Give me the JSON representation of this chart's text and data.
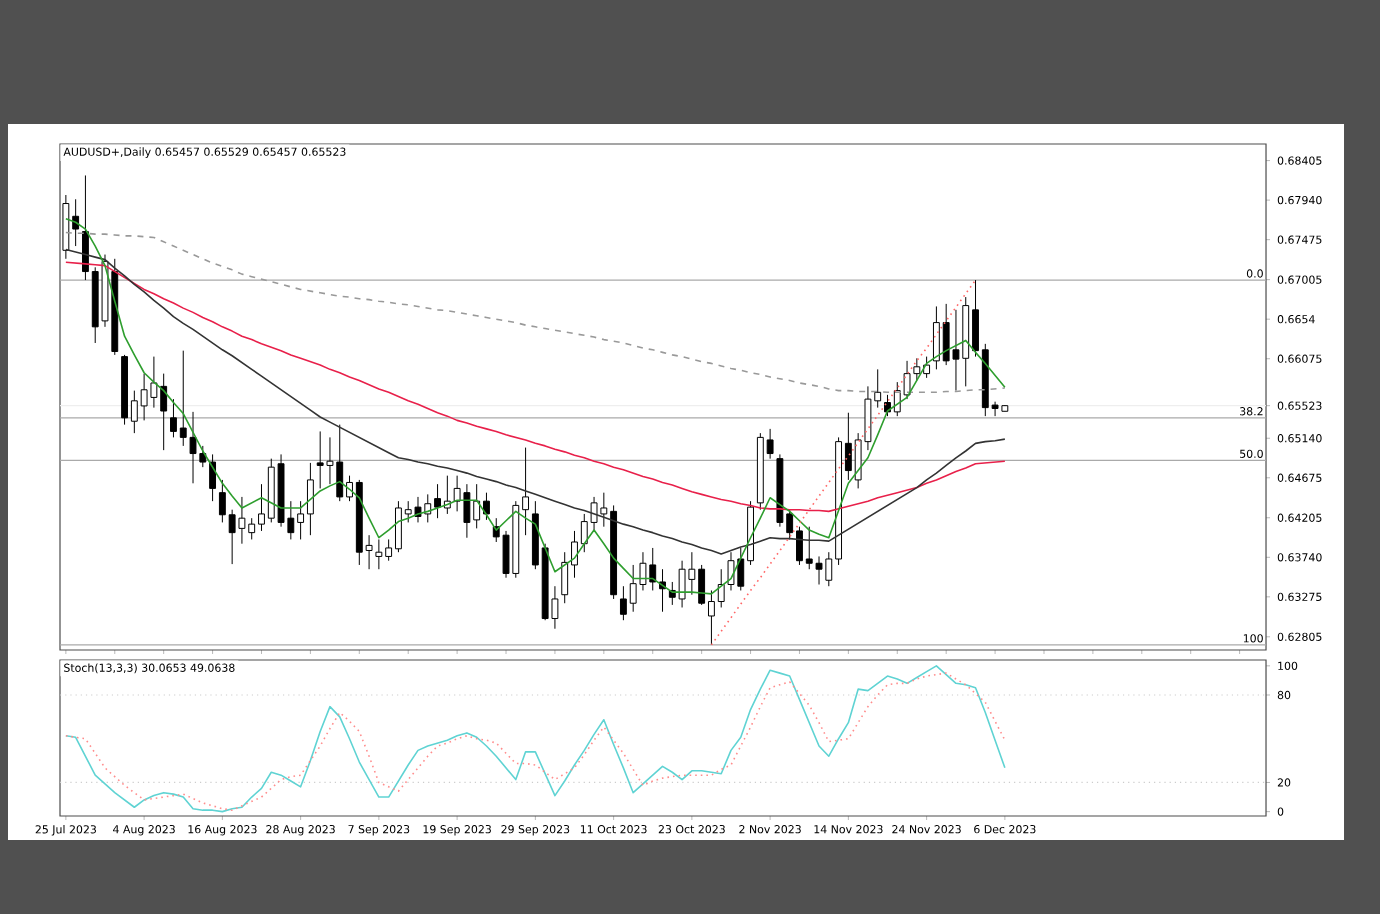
{
  "chart_data": [
    {
      "type": "candlestick",
      "title": "AUDUSD+,Daily 0.65457 0.65529 0.65457 0.65523",
      "tick_labels": "y",
      "categories": [
        null,
        null,
        null,
        null,
        null,
        null,
        null,
        null,
        null,
        null,
        null,
        null,
        null,
        null,
        null,
        null,
        null,
        null,
        null,
        null,
        null,
        null,
        null,
        null,
        null,
        null,
        null,
        null,
        null,
        null,
        null,
        null,
        null,
        null,
        null,
        null,
        null,
        null,
        null,
        null,
        null,
        null,
        null,
        null,
        null,
        null,
        null,
        null,
        null,
        null,
        null,
        null,
        null,
        null,
        null,
        null,
        null,
        null,
        null,
        null,
        null,
        null,
        null,
        null,
        null,
        null,
        null,
        null,
        null,
        null,
        null,
        null,
        null,
        null,
        null,
        null,
        null,
        null,
        null,
        null,
        null,
        null,
        null,
        null,
        null,
        null,
        null,
        null,
        null,
        null,
        null,
        null,
        null,
        null,
        null,
        null,
        null
      ],
      "ylim": [
        0.6265,
        0.686
      ],
      "yticks": [
        0.62805,
        0.63275,
        {
          "value": 0.6374,
          "label": "0.63740"
        },
        0.64205,
        0.64675,
        {
          "value": 0.6514,
          "label": "0.65140"
        },
        {
          "value": 0.65523,
          "label": "0.65523"
        },
        0.66075,
        0.6654,
        0.67005,
        0.67475,
        {
          "value": 0.6794,
          "label": "0.67940"
        },
        0.68405
      ],
      "ohlc": [
        [
          0.6735,
          0.68,
          0.6725,
          0.679
        ],
        [
          0.6775,
          0.6795,
          0.674,
          0.676
        ],
        [
          0.6757,
          0.6823,
          0.67,
          0.671
        ],
        [
          0.671,
          0.6715,
          0.6626,
          0.6645
        ],
        [
          0.6652,
          0.673,
          0.6645,
          0.6722
        ],
        [
          0.671,
          0.6725,
          0.6612,
          0.6616
        ],
        [
          0.661,
          0.6612,
          0.653,
          0.6538
        ],
        [
          0.6534,
          0.657,
          0.652,
          0.6558
        ],
        [
          0.6552,
          0.659,
          0.6535,
          0.6571
        ],
        [
          0.6562,
          0.661,
          0.655,
          0.6579
        ],
        [
          0.6575,
          0.659,
          0.65,
          0.6546
        ],
        [
          0.6538,
          0.656,
          0.6515,
          0.6522
        ],
        [
          0.6526,
          0.6617,
          0.6505,
          0.6515
        ],
        [
          0.6515,
          0.6545,
          0.6461,
          0.6496
        ],
        [
          0.6496,
          0.6505,
          0.648,
          0.6486
        ],
        [
          0.6486,
          0.6495,
          0.644,
          0.6455
        ],
        [
          0.645,
          0.6465,
          0.6415,
          0.6424
        ],
        [
          0.6424,
          0.643,
          0.6366,
          0.6403
        ],
        [
          0.6408,
          0.6445,
          0.639,
          0.642
        ],
        [
          0.6403,
          0.642,
          0.6395,
          0.6413
        ],
        [
          0.6413,
          0.646,
          0.6405,
          0.6425
        ],
        [
          0.642,
          0.649,
          0.6415,
          0.648
        ],
        [
          0.6484,
          0.6495,
          0.641,
          0.6415
        ],
        [
          0.642,
          0.644,
          0.6395,
          0.6403
        ],
        [
          0.6415,
          0.644,
          0.6395,
          0.6425
        ],
        [
          0.6425,
          0.6485,
          0.64,
          0.6465
        ],
        [
          0.6485,
          0.6522,
          0.6455,
          0.6482
        ],
        [
          0.6482,
          0.6515,
          0.646,
          0.6487
        ],
        [
          0.6486,
          0.653,
          0.644,
          0.6445
        ],
        [
          0.6445,
          0.647,
          0.644,
          0.6462
        ],
        [
          0.6462,
          0.6465,
          0.6365,
          0.638
        ],
        [
          0.6382,
          0.64,
          0.636,
          0.6388
        ],
        [
          0.6375,
          0.6395,
          0.636,
          0.638
        ],
        [
          0.6375,
          0.6395,
          0.637,
          0.6385
        ],
        [
          0.6384,
          0.644,
          0.638,
          0.6432
        ],
        [
          0.6425,
          0.644,
          0.6415,
          0.643
        ],
        [
          0.6433,
          0.6445,
          0.6415,
          0.6422
        ],
        [
          0.6425,
          0.6448,
          0.6415,
          0.6437
        ],
        [
          0.6443,
          0.646,
          0.642,
          0.6433
        ],
        [
          0.6432,
          0.647,
          0.6425,
          0.644
        ],
        [
          0.644,
          0.647,
          0.6428,
          0.6455
        ],
        [
          0.645,
          0.646,
          0.6397,
          0.6415
        ],
        [
          0.6418,
          0.646,
          0.6408,
          0.644
        ],
        [
          0.644,
          0.645,
          0.6418,
          0.6425
        ],
        [
          0.641,
          0.642,
          0.6392,
          0.6398
        ],
        [
          0.64,
          0.6405,
          0.635,
          0.6355
        ],
        [
          0.6355,
          0.644,
          0.635,
          0.6435
        ],
        [
          0.643,
          0.6503,
          0.64,
          0.6445
        ],
        [
          0.6425,
          0.644,
          0.636,
          0.6365
        ],
        [
          0.6385,
          0.639,
          0.63,
          0.6302
        ],
        [
          0.6302,
          0.634,
          0.629,
          0.6325
        ],
        [
          0.633,
          0.638,
          0.632,
          0.6368
        ],
        [
          0.6365,
          0.6405,
          0.635,
          0.6392
        ],
        [
          0.639,
          0.6425,
          0.638,
          0.6416
        ],
        [
          0.6415,
          0.6445,
          0.6405,
          0.6438
        ],
        [
          0.6425,
          0.645,
          0.641,
          0.6432
        ],
        [
          0.6428,
          0.6435,
          0.6325,
          0.633
        ],
        [
          0.6325,
          0.634,
          0.63,
          0.6307
        ],
        [
          0.632,
          0.6365,
          0.631,
          0.6343
        ],
        [
          0.6342,
          0.638,
          0.6335,
          0.6367
        ],
        [
          0.6365,
          0.6385,
          0.6335,
          0.6345
        ],
        [
          0.6345,
          0.636,
          0.631,
          0.6337
        ],
        [
          0.6335,
          0.6345,
          0.6318,
          0.6327
        ],
        [
          0.6325,
          0.637,
          0.6315,
          0.636
        ],
        [
          0.6348,
          0.638,
          0.633,
          0.636
        ],
        [
          0.636,
          0.6365,
          0.6318,
          0.632
        ],
        [
          0.6305,
          0.6335,
          0.6271,
          0.6322
        ],
        [
          0.6322,
          0.636,
          0.6315,
          0.6342
        ],
        [
          0.6342,
          0.638,
          0.6335,
          0.637
        ],
        [
          0.6372,
          0.6385,
          0.6335,
          0.634
        ],
        [
          0.637,
          0.644,
          0.6365,
          0.6433
        ],
        [
          0.6438,
          0.652,
          0.643,
          0.6515
        ],
        [
          0.6512,
          0.6525,
          0.649,
          0.6496
        ],
        [
          0.649,
          0.6495,
          0.641,
          0.6415
        ],
        [
          0.6425,
          0.643,
          0.6395,
          0.6403
        ],
        [
          0.6405,
          0.641,
          0.6365,
          0.637
        ],
        [
          0.6372,
          0.641,
          0.636,
          0.6367
        ],
        [
          0.6367,
          0.6375,
          0.6342,
          0.636
        ],
        [
          0.6347,
          0.638,
          0.634,
          0.6372
        ],
        [
          0.6372,
          0.6515,
          0.6365,
          0.651
        ],
        [
          0.6508,
          0.6544,
          0.6465,
          0.6476
        ],
        [
          0.6465,
          0.652,
          0.6455,
          0.6512
        ],
        [
          0.651,
          0.6575,
          0.65,
          0.656
        ],
        [
          0.6558,
          0.6595,
          0.655,
          0.6568
        ],
        [
          0.6556,
          0.6565,
          0.654,
          0.6545
        ],
        [
          0.6545,
          0.658,
          0.654,
          0.657
        ],
        [
          0.6565,
          0.6605,
          0.656,
          0.659
        ],
        [
          0.659,
          0.6608,
          0.6582,
          0.6598
        ],
        [
          0.659,
          0.661,
          0.6585,
          0.66
        ],
        [
          0.6605,
          0.6669,
          0.6595,
          0.665
        ],
        [
          0.665,
          0.6672,
          0.66,
          0.6605
        ],
        [
          0.6618,
          0.6665,
          0.657,
          0.6607
        ],
        [
          0.6608,
          0.668,
          0.6575,
          0.667
        ],
        [
          0.6665,
          0.67,
          0.661,
          0.6617
        ],
        [
          0.6618,
          0.6625,
          0.654,
          0.655
        ],
        [
          0.6553,
          0.6557,
          0.654,
          0.6549
        ],
        [
          0.65457,
          0.65529,
          0.65457,
          0.65523
        ]
      ],
      "series": [
        {
          "type": "line",
          "color": "#999999",
          "line_style": "dashed",
          "values": [
            0.6756,
            0.6755,
            0.6755,
            0.6754,
            0.6754,
            0.6753,
            0.6752,
            0.6752,
            0.6751,
            0.675,
            0.6745,
            0.674,
            0.6735,
            0.673,
            0.6725,
            0.672,
            0.6716,
            0.6712,
            0.6707,
            0.6704,
            0.6701,
            0.6698,
            0.6695,
            0.6692,
            0.6689,
            0.6687,
            0.6685,
            0.6683,
            0.6681,
            0.668,
            0.6678,
            0.6677,
            0.6675,
            0.6674,
            0.6672,
            0.6671,
            0.6669,
            0.6667,
            0.6665,
            0.6664,
            0.6662,
            0.666,
            0.6658,
            0.6656,
            0.6654,
            0.6652,
            0.665,
            0.6647,
            0.6645,
            0.6643,
            0.6641,
            0.6639,
            0.6637,
            0.6635,
            0.6633,
            0.663,
            0.6628,
            0.6626,
            0.6623,
            0.662,
            0.6618,
            0.6615,
            0.6612,
            0.661,
            0.6607,
            0.6604,
            0.6602,
            0.6599,
            0.6596,
            0.6594,
            0.6591,
            0.6589,
            0.6586,
            0.6584,
            0.6582,
            0.6579,
            0.6577,
            0.6575,
            0.6572,
            0.657,
            0.657,
            0.6569,
            0.6569,
            0.6569,
            0.6568,
            0.6568,
            0.6568,
            0.6568,
            0.6568,
            0.6568,
            0.6569,
            0.6569,
            0.657,
            0.6571,
            0.6571,
            0.6572,
            0.6573
          ]
        },
        {
          "type": "line",
          "color": "#e8204a",
          "line_style": "solid",
          "values": [
            0.6721,
            0.672,
            0.6719,
            0.6718,
            0.6717,
            0.671,
            0.6703,
            0.6696,
            0.6689,
            0.6684,
            0.6678,
            0.6673,
            0.6667,
            0.6662,
            0.6656,
            0.6651,
            0.6645,
            0.664,
            0.6634,
            0.663,
            0.6625,
            0.6621,
            0.6617,
            0.6612,
            0.6608,
            0.6604,
            0.66,
            0.6595,
            0.6591,
            0.6586,
            0.6582,
            0.6577,
            0.6572,
            0.6568,
            0.6563,
            0.6558,
            0.6554,
            0.6549,
            0.6544,
            0.654,
            0.6535,
            0.6532,
            0.6528,
            0.6525,
            0.6522,
            0.6518,
            0.6515,
            0.6512,
            0.6508,
            0.6505,
            0.6501,
            0.6498,
            0.6494,
            0.6491,
            0.6487,
            0.6484,
            0.648,
            0.6477,
            0.6473,
            0.6469,
            0.6466,
            0.6462,
            0.6459,
            0.6455,
            0.6451,
            0.6448,
            0.6445,
            0.6442,
            0.644,
            0.6437,
            0.6435,
            0.6432,
            0.6431,
            0.6431,
            0.643,
            0.643,
            0.6429,
            0.6429,
            0.6428,
            0.6431,
            0.6434,
            0.6437,
            0.644,
            0.6444,
            0.6447,
            0.645,
            0.6453,
            0.6456,
            0.6461,
            0.6465,
            0.647,
            0.6475,
            0.6479,
            0.6484,
            0.6485,
            0.6486,
            0.6487
          ]
        },
        {
          "type": "line",
          "color": "#333333",
          "line_style": "solid",
          "values": [
            0.6736,
            0.6733,
            0.673,
            0.6727,
            0.6724,
            0.6714,
            0.6705,
            0.6695,
            0.6686,
            0.6676,
            0.6667,
            0.6657,
            0.6649,
            0.6642,
            0.6634,
            0.6626,
            0.6618,
            0.6611,
            0.6603,
            0.6595,
            0.6587,
            0.6579,
            0.6571,
            0.6563,
            0.6555,
            0.6547,
            0.6539,
            0.6533,
            0.6527,
            0.6521,
            0.6515,
            0.6509,
            0.6503,
            0.6497,
            0.6491,
            0.6489,
            0.6486,
            0.6484,
            0.6481,
            0.6479,
            0.6476,
            0.6473,
            0.6469,
            0.6466,
            0.6463,
            0.6459,
            0.6456,
            0.6452,
            0.6448,
            0.6444,
            0.644,
            0.6436,
            0.6432,
            0.6429,
            0.6425,
            0.6421,
            0.6417,
            0.6413,
            0.641,
            0.6406,
            0.6403,
            0.6399,
            0.6396,
            0.6392,
            0.6389,
            0.6385,
            0.6382,
            0.6378,
            0.6382,
            0.6386,
            0.6389,
            0.6393,
            0.6397,
            0.6396,
            0.6396,
            0.6395,
            0.6394,
            0.6394,
            0.6393,
            0.64,
            0.6407,
            0.6414,
            0.6421,
            0.6428,
            0.6435,
            0.6442,
            0.6449,
            0.6456,
            0.6465,
            0.6473,
            0.6482,
            0.6491,
            0.6499,
            0.6508,
            0.651,
            0.6511,
            0.6513
          ]
        },
        {
          "type": "line",
          "color": "#2e9e2e",
          "line_style": "solid",
          "values": [
            0.6772,
            0.6768,
            0.676,
            0.674,
            0.6717,
            0.6675,
            0.6634,
            0.6612,
            0.6591,
            0.658,
            0.657,
            0.6556,
            0.6543,
            0.6521,
            0.6499,
            0.648,
            0.6461,
            0.6446,
            0.6432,
            0.6438,
            0.6444,
            0.6438,
            0.6432,
            0.6432,
            0.6432,
            0.6442,
            0.6452,
            0.6458,
            0.6463,
            0.6454,
            0.6444,
            0.642,
            0.6397,
            0.6406,
            0.6416,
            0.642,
            0.6425,
            0.6428,
            0.6432,
            0.6436,
            0.6441,
            0.6441,
            0.6441,
            0.6424,
            0.6406,
            0.6417,
            0.6428,
            0.642,
            0.6413,
            0.6385,
            0.6357,
            0.6365,
            0.6373,
            0.639,
            0.6406,
            0.639,
            0.6373,
            0.6361,
            0.6349,
            0.6349,
            0.6349,
            0.6341,
            0.6333,
            0.6333,
            0.6333,
            0.6332,
            0.6331,
            0.634,
            0.6349,
            0.6373,
            0.6397,
            0.642,
            0.6444,
            0.6436,
            0.6428,
            0.6417,
            0.6406,
            0.6401,
            0.6397,
            0.6429,
            0.6461,
            0.6476,
            0.6491,
            0.6518,
            0.6546,
            0.6554,
            0.6562,
            0.6582,
            0.6602,
            0.661,
            0.6617,
            0.6623,
            0.6629,
            0.6615,
            0.6602,
            0.6588,
            0.6574
          ]
        },
        {
          "type": "line",
          "color": "#ff6666",
          "line_style": "dotted",
          "values": [
            null,
            null,
            null,
            null,
            null,
            null,
            null,
            null,
            null,
            null,
            null,
            null,
            null,
            null,
            null,
            null,
            null,
            null,
            null,
            null,
            null,
            null,
            null,
            null,
            null,
            null,
            null,
            null,
            null,
            null,
            null,
            null,
            null,
            null,
            null,
            null,
            null,
            null,
            null,
            null,
            null,
            null,
            null,
            null,
            null,
            null,
            null,
            null,
            null,
            null,
            null,
            null,
            null,
            null,
            null,
            null,
            null,
            null,
            null,
            null,
            null,
            null,
            null,
            null,
            null,
            null,
            0.6271,
            0.6287,
            0.6303,
            0.6319,
            0.6335,
            0.635,
            0.6366,
            0.6382,
            0.6398,
            0.6414,
            0.643,
            0.6446,
            0.6462,
            0.6478,
            0.6493,
            0.6509,
            0.6525,
            0.6541,
            0.6557,
            0.6573,
            0.6589,
            0.6605,
            0.662,
            0.6636,
            0.6652,
            0.6668,
            0.6684,
            0.67,
            null,
            null,
            null
          ]
        }
      ],
      "ref_lines": [
        {
          "axis": "y",
          "value": 0.67,
          "color": "#aaaaaa"
        },
        {
          "axis": "y",
          "value": 0.6538,
          "color": "#aaaaaa"
        },
        {
          "axis": "y",
          "value": 0.6488,
          "color": "#aaaaaa"
        },
        {
          "axis": "y",
          "value": 0.6271,
          "color": "#aaaaaa"
        },
        {
          "axis": "y",
          "value": 0.65523,
          "color": "#eeeeee"
        }
      ],
      "annotations": [
        {
          "text": "0.0",
          "y": 0.67
        },
        {
          "text": "38.2",
          "y": 0.6538
        },
        {
          "text": "50.0",
          "y": 0.6488
        },
        {
          "text": "100",
          "y": 0.6271
        }
      ]
    },
    {
      "type": "line",
      "title": "Stoch(13,3,3) 30.0653 49.0638",
      "categories": [
        "25 Jul 2023",
        null,
        null,
        null,
        null,
        null,
        null,
        null,
        "4 Aug 2023",
        null,
        null,
        null,
        null,
        null,
        null,
        null,
        "16 Aug 2023",
        null,
        null,
        null,
        null,
        null,
        null,
        null,
        "28 Aug 2023",
        null,
        null,
        null,
        null,
        null,
        null,
        null,
        "7 Sep 2023",
        null,
        null,
        null,
        null,
        null,
        null,
        null,
        "19 Sep 2023",
        null,
        null,
        null,
        null,
        null,
        null,
        null,
        "29 Sep 2023",
        null,
        null,
        null,
        null,
        null,
        null,
        null,
        "11 Oct 2023",
        null,
        null,
        null,
        null,
        null,
        null,
        null,
        "23 Oct 2023",
        null,
        null,
        null,
        null,
        null,
        null,
        null,
        "2 Nov 2023",
        null,
        null,
        null,
        null,
        null,
        null,
        null,
        "14 Nov 2023",
        null,
        null,
        null,
        null,
        null,
        null,
        null,
        "24 Nov 2023",
        null,
        null,
        null,
        null,
        null,
        null,
        null,
        "6 Dec 2023"
      ],
      "ylim": [
        -3,
        104
      ],
      "yticks": [
        0,
        20,
        80,
        100
      ],
      "series": [
        {
          "color": "#5fd3d3",
          "line_style": "solid",
          "values": [
            52,
            51,
            38,
            25,
            19,
            13,
            8,
            3,
            8,
            11,
            13,
            12,
            10,
            2,
            1,
            1,
            0,
            2,
            3,
            10,
            16,
            27,
            25,
            21,
            17,
            35,
            55,
            72,
            65,
            50,
            34,
            22,
            10,
            10,
            21,
            32,
            42,
            45,
            47,
            49,
            52,
            54,
            51,
            45,
            38,
            30,
            22,
            41,
            41,
            26,
            11,
            21,
            32,
            42,
            53,
            63,
            46,
            30,
            13,
            19,
            25,
            31,
            27,
            22,
            28,
            28,
            27,
            26,
            42,
            51,
            70,
            84,
            97,
            95,
            93,
            77,
            61,
            45,
            38,
            50,
            61,
            84,
            83,
            88,
            93,
            91,
            88,
            92,
            96,
            100,
            94,
            88,
            87,
            85,
            68,
            49,
            30.0653
          ]
        },
        {
          "color": "#ff8c8c",
          "line_style": "dotted",
          "values": [
            52,
            51,
            50,
            40,
            30,
            24,
            18,
            13,
            8,
            9,
            10,
            11,
            12,
            9,
            6,
            4,
            2,
            1,
            4,
            7,
            10,
            16,
            22,
            24,
            25,
            35,
            45,
            57,
            68,
            62,
            55,
            38,
            20,
            17,
            14,
            22,
            30,
            38,
            45,
            47,
            50,
            52,
            50,
            49,
            47,
            40,
            33,
            33,
            32,
            27,
            22,
            26,
            30,
            39,
            49,
            58,
            49,
            40,
            29,
            18,
            21,
            23,
            24,
            25,
            25,
            25,
            25,
            29,
            32,
            45,
            58,
            72,
            85,
            87,
            89,
            81,
            73,
            61,
            48,
            49,
            50,
            61,
            72,
            80,
            87,
            88,
            88,
            91,
            93,
            94,
            95,
            91,
            87,
            81,
            75,
            62,
            49.0638
          ]
        }
      ],
      "ref_lines": [
        {
          "axis": "y",
          "value": 20,
          "color": "#cccccc",
          "line_style": "dotted"
        },
        {
          "axis": "y",
          "value": 80,
          "color": "#cccccc",
          "line_style": "dotted"
        }
      ]
    }
  ]
}
